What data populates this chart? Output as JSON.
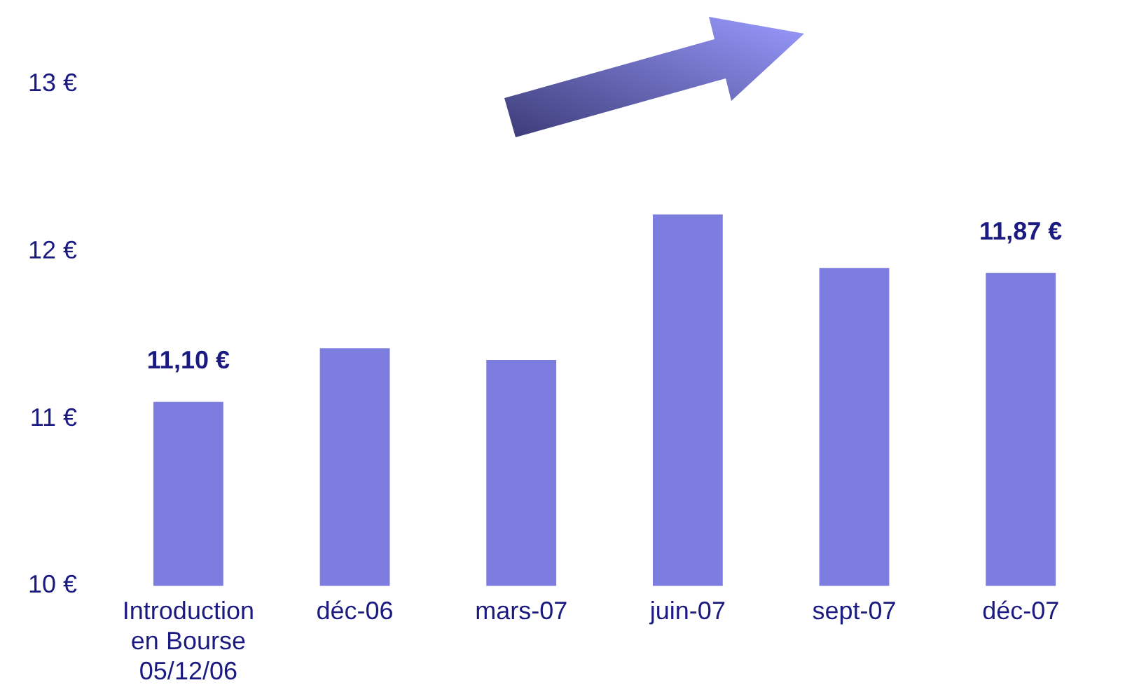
{
  "chart_data": {
    "type": "bar",
    "categories": [
      "Introduction en Bourse 05/12/06",
      "déc-06",
      "mars-07",
      "juin-07",
      "sept-07",
      "déc-07"
    ],
    "values": [
      11.1,
      11.42,
      11.35,
      12.22,
      11.9,
      11.87
    ],
    "value_labels": [
      "11,10 €",
      null,
      null,
      null,
      null,
      "11,87 €"
    ],
    "color": "#7d7de0",
    "ylim": [
      10,
      13
    ],
    "yticks": [
      {
        "value": 10,
        "label": "10 €"
      },
      {
        "value": 11,
        "label": "11 €"
      },
      {
        "value": 12,
        "label": "12 €"
      },
      {
        "value": 13,
        "label": "13 €"
      }
    ],
    "grid": false,
    "legend": false
  }
}
